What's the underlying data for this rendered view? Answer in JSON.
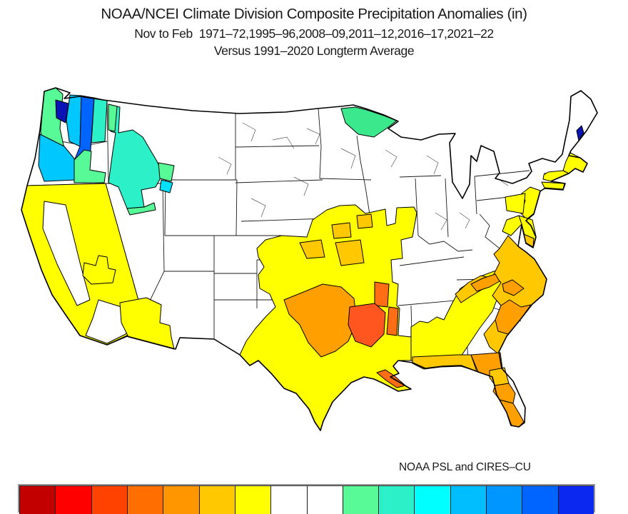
{
  "title": {
    "line1": "NOAA/NCEI Climate Division Composite Precipitation Anomalies (in)",
    "line2": "Nov to Feb  1971–72,1995–96,2008–09,2011–12,2016–17,2021–22",
    "line3": "Versus 1991–2020 Longterm Average"
  },
  "credit": "NOAA PSL and CIRES–CU",
  "palette": {
    "yellow": "#FFFF00",
    "gold": "#FFC800",
    "orange": "#FFA000",
    "deep_orange": "#FF6E14",
    "red_orange": "#FF551E",
    "green": "#57FA96",
    "mn_green": "#3CE88C",
    "turquoise": "#2BF0C8",
    "cyan": "#00C8FF",
    "bright_cyan": "#00E0FF",
    "blue": "#0064FF",
    "navy": "#0A14B4",
    "white": "#FFFFFF",
    "outline": "#000000"
  },
  "colorbar": {
    "colors": [
      "#C30000",
      "#FF0000",
      "#FF4200",
      "#FF6E00",
      "#FF9600",
      "#FFC800",
      "#FFFF00",
      "#FFFFFF",
      "#FFFFFF",
      "#57FA96",
      "#2BF0C8",
      "#00FFFF",
      "#00BEFF",
      "#0096FF",
      "#0064FF",
      "#0A28F0"
    ]
  },
  "map_summary": {
    "type": "choropleth",
    "geography": "Contiguous United States climate divisions",
    "units": "inches of precipitation anomaly",
    "wet_regions": [
      "Washington coast and Olympic Mountains",
      "Puget Sound lowlands",
      "Cascade Range (Washington/Oregon)",
      "Oregon coast",
      "Idaho panhandle and central Idaho",
      "Southwest Montana",
      "Yellowstone / northwest Wyoming",
      "Southeast Idaho",
      "Northeast Minnesota arrowhead",
      "Downeast Maine coast"
    ],
    "dry_regions": [
      "California coast and Sierra",
      "Southern Nevada",
      "Southern Arizona",
      "Eastern Kansas and Oklahoma",
      "Central and southern Texas",
      "Missouri and southern Illinois/Indiana",
      "Arkansas, Louisiana, Mississippi (strongest anomalies)",
      "Louisiana delta",
      "Alabama and Georgia",
      "Florida",
      "Carolinas coastal plain",
      "Virginia and Delmarva",
      "New Jersey, Long Island, southern New England coast"
    ]
  }
}
